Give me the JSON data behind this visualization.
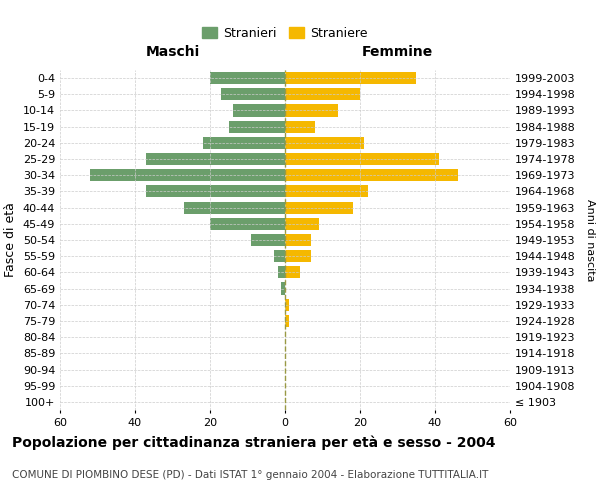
{
  "age_groups": [
    "100+",
    "95-99",
    "90-94",
    "85-89",
    "80-84",
    "75-79",
    "70-74",
    "65-69",
    "60-64",
    "55-59",
    "50-54",
    "45-49",
    "40-44",
    "35-39",
    "30-34",
    "25-29",
    "20-24",
    "15-19",
    "10-14",
    "5-9",
    "0-4"
  ],
  "birth_years": [
    "≤ 1903",
    "1904-1908",
    "1909-1913",
    "1914-1918",
    "1919-1923",
    "1924-1928",
    "1929-1933",
    "1934-1938",
    "1939-1943",
    "1944-1948",
    "1949-1953",
    "1954-1958",
    "1959-1963",
    "1964-1968",
    "1969-1973",
    "1974-1978",
    "1979-1983",
    "1984-1988",
    "1989-1993",
    "1994-1998",
    "1999-2003"
  ],
  "males": [
    0,
    0,
    0,
    0,
    0,
    0,
    0,
    1,
    2,
    3,
    9,
    20,
    27,
    37,
    52,
    37,
    22,
    15,
    14,
    17,
    20
  ],
  "females": [
    0,
    0,
    0,
    0,
    0,
    1,
    1,
    0,
    4,
    7,
    7,
    9,
    18,
    22,
    46,
    41,
    21,
    8,
    14,
    20,
    35
  ],
  "male_color": "#6b9e6b",
  "female_color": "#f5b800",
  "background_color": "#ffffff",
  "grid_color": "#cccccc",
  "center_line_color": "#999944",
  "xlim": 60,
  "title": "Popolazione per cittadinanza straniera per età e sesso - 2004",
  "subtitle": "COMUNE DI PIOMBINO DESE (PD) - Dati ISTAT 1° gennaio 2004 - Elaborazione TUTTITALIA.IT",
  "left_header": "Maschi",
  "right_header": "Femmine",
  "y_label": "Fasce di età",
  "right_y_label": "Anni di nascita",
  "legend_male": "Stranieri",
  "legend_female": "Straniere",
  "tick_fontsize": 8,
  "title_fontsize": 10,
  "subtitle_fontsize": 7.5
}
